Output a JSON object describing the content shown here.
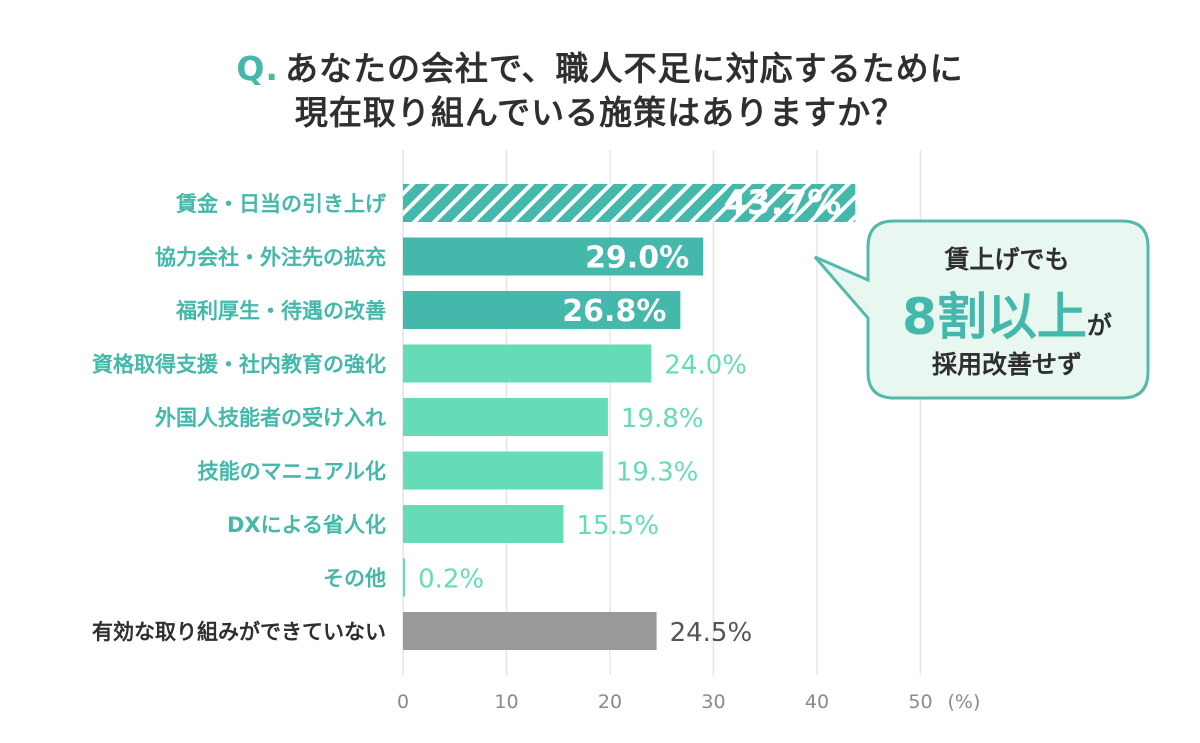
{
  "title": {
    "q_mark": "Q.",
    "line1": "あなたの会社で、職人不足に対応するために",
    "line2": "現在取り組んでいる施策はありますか？"
  },
  "callout": {
    "line1": "賃上げでも",
    "line2_big": "8割以上",
    "line2_suffix": "が",
    "line3": "採用改善せず"
  },
  "colors": {
    "dark_teal": "#43b8ab",
    "light_teal": "#66dbb8",
    "gray": "#999999",
    "label_teal": "#43b8ab",
    "label_gray": "#2f2f2f",
    "callout_fill": "#e9f7f1",
    "callout_border": "#54b9ab"
  },
  "chart_data": {
    "type": "bar",
    "orientation": "horizontal",
    "categories": [
      "賃金・日当の引き上げ",
      "協力会社・外注先の拡充",
      "福利厚生・待遇の改善",
      "資格取得支援・社内教育の強化",
      "外国人技能者の受け入れ",
      "技能のマニュアル化",
      "DXによる省人化",
      "その他",
      "有効な取り組みができていない"
    ],
    "values": [
      43.7,
      29.0,
      26.8,
      24.0,
      19.8,
      19.3,
      15.5,
      0.2,
      24.5
    ],
    "value_labels": [
      "43.7%",
      "29.0%",
      "26.8%",
      "24.0%",
      "19.8%",
      "19.3%",
      "15.5%",
      "0.2%",
      "24.5%"
    ],
    "styles": [
      "hatched",
      "dark",
      "dark",
      "light",
      "light",
      "light",
      "light",
      "light",
      "gray"
    ],
    "xlim": [
      0,
      50
    ],
    "xticks": [
      0,
      10,
      20,
      30,
      40,
      50
    ],
    "xtick_labels": [
      "0",
      "10",
      "20",
      "30",
      "40",
      "50"
    ],
    "x_unit": "(%)",
    "grid": true
  }
}
